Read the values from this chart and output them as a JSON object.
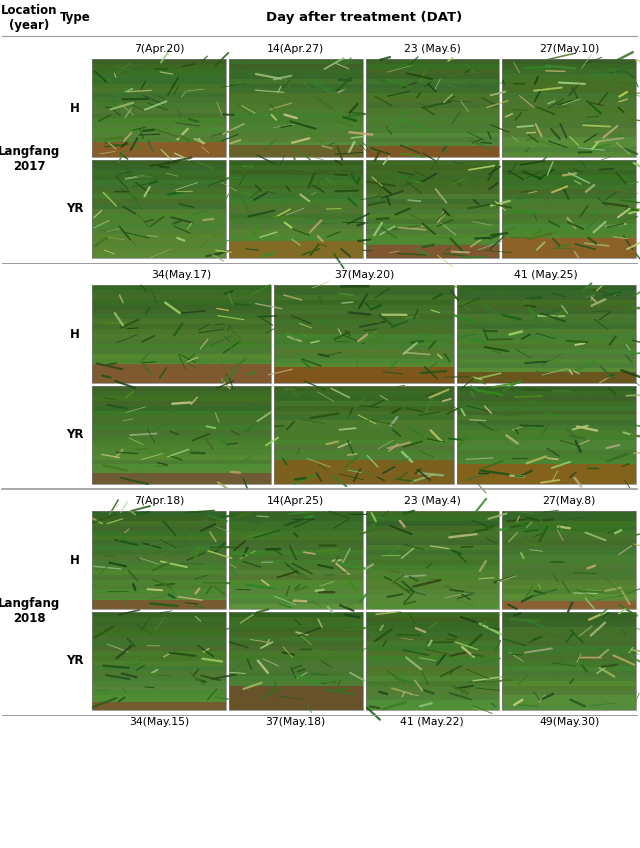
{
  "header_col1": "Location\n(year)",
  "header_col2": "Type",
  "header_col3": "Day after treatment (DAT)",
  "bg_color": "#ffffff",
  "line_color": "#999999",
  "section1": {
    "location": "Langfang\n2017",
    "row1_type": "H",
    "row2_type": "YR",
    "col_labels": [
      "7(Apr.20)",
      "14(Apr.27)",
      "23 (May.6)",
      "27(May.10)"
    ],
    "n_cols": 4
  },
  "section2": {
    "row1_type": "H",
    "row2_type": "YR",
    "col_labels": [
      "34(May.17)",
      "37(May.20)",
      "41 (May.25)"
    ],
    "n_cols": 3
  },
  "section3": {
    "location": "Langfang\n2018",
    "row1_type": "H",
    "row2_type": "YR",
    "col_labels_top": [
      "7(Apr.18)",
      "14(Apr.25)",
      "23 (May.4)",
      "27(May.8)"
    ],
    "col_labels_bottom": [
      "34(May.15)",
      "37(May.18)",
      "41 (May.22)",
      "49(May.30)"
    ],
    "n_cols": 4
  }
}
